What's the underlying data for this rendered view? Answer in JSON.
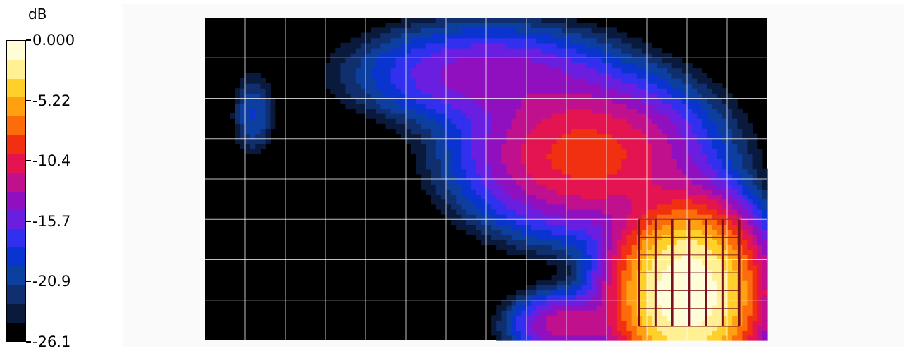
{
  "chart_data": {
    "type": "heatmap",
    "title": "",
    "colorbar": {
      "unit": "dB",
      "range": [
        -26.1,
        0.0
      ],
      "tick_labels": [
        "0.000",
        "-5.22",
        "-10.4",
        "-15.7",
        "-20.9",
        "-26.1"
      ],
      "levels": 15,
      "colors": [
        "#000000",
        "#0a1a3c",
        "#102f6e",
        "#0d3fa0",
        "#0a34d0",
        "#3030ee",
        "#6a1fe0",
        "#9010c0",
        "#c0108e",
        "#e41450",
        "#f03010",
        "#fc6c0a",
        "#ffa010",
        "#ffd02a",
        "#fff094",
        "#fffcd8"
      ]
    },
    "grid": true,
    "grid_columns": 14,
    "grid_rows": 8,
    "x_range": [
      0,
      14
    ],
    "y_range": [
      0,
      8
    ],
    "field": {
      "background_db": -26.1,
      "sources": [
        {
          "x": 12.0,
          "y": 1.2,
          "peak_db": 0.0,
          "sx": 1.4,
          "sy": 1.7
        },
        {
          "x": 9.5,
          "y": 4.6,
          "peak_db": -9.0,
          "sx": 2.5,
          "sy": 1.6
        },
        {
          "x": 7.0,
          "y": 6.6,
          "peak_db": -14.0,
          "sx": 2.8,
          "sy": 1.1
        },
        {
          "x": 1.2,
          "y": 5.6,
          "peak_db": -20.0,
          "sx": 0.5,
          "sy": 1.0
        },
        {
          "x": 9.0,
          "y": 0.4,
          "peak_db": -12.0,
          "sx": 1.2,
          "sy": 0.7
        }
      ]
    },
    "array_overlay": {
      "color": "#7a1020",
      "x_extent": [
        10.8,
        13.3
      ],
      "y_extent": [
        0.35,
        3.0
      ],
      "vertical_lines": 7,
      "horizontal_lines": 7
    }
  }
}
